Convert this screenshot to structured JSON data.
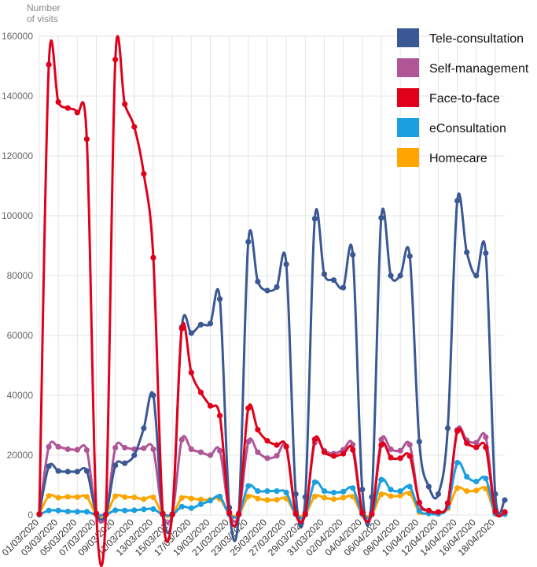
{
  "chart_data": {
    "type": "line",
    "ylabel": "Number of visits",
    "ylabel_lines": [
      "Number",
      "of visits"
    ],
    "ylim": [
      0,
      160000
    ],
    "y_ticks": [
      0,
      20000,
      40000,
      60000,
      80000,
      100000,
      120000,
      140000,
      160000
    ],
    "grid": true,
    "legend_position": "top-right",
    "x": [
      "01/03/2020",
      "02/03/2020",
      "03/03/2020",
      "04/03/2020",
      "05/03/2020",
      "06/03/2020",
      "07/03/2020",
      "08/03/2020",
      "09/03/2020",
      "10/03/2020",
      "11/03/2020",
      "12/03/2020",
      "13/03/2020",
      "14/03/2020",
      "15/03/2020",
      "16/03/2020",
      "17/03/2020",
      "18/03/2020",
      "19/03/2020",
      "20/03/2020",
      "21/03/2020",
      "22/03/2020",
      "23/03/2020",
      "24/03/2020",
      "25/03/2020",
      "26/03/2020",
      "27/03/2020",
      "28/03/2020",
      "29/03/2020",
      "30/03/2020",
      "31/03/2020",
      "01/04/2020",
      "02/04/2020",
      "03/04/2020",
      "04/04/2020",
      "05/04/2020",
      "06/04/2020",
      "07/04/2020",
      "08/04/2020",
      "09/04/2020",
      "10/04/2020",
      "11/04/2020",
      "12/04/2020",
      "13/04/2020",
      "14/04/2020",
      "15/04/2020",
      "16/04/2020",
      "17/04/2020",
      "18/04/2020",
      "19/04/2020"
    ],
    "x_tick_labels": [
      "01/03/2020",
      "03/03/2020",
      "05/03/2020",
      "07/03/2020",
      "09/03/2020",
      "11/03/2020",
      "13/03/2020",
      "15/03/2020",
      "17/03/2020",
      "19/03/2020",
      "21/03/2020",
      "23/03/2020",
      "25/03/2020",
      "27/03/2020",
      "29/03/2020",
      "31/03/2020",
      "02/04/2020",
      "04/04/2020",
      "06/04/2020",
      "08/04/2020",
      "10/04/2020",
      "12/04/2020",
      "14/04/2020",
      "16/04/2020",
      "18/04/2020"
    ],
    "series": [
      {
        "name": "Tele-consultation",
        "color": "#3a5894",
        "values": [
          400,
          16300,
          14700,
          14500,
          14500,
          14700,
          500,
          200,
          16600,
          17300,
          20000,
          29000,
          40000,
          500,
          300,
          62800,
          60800,
          63600,
          64000,
          72200,
          2500,
          500,
          91300,
          78000,
          75000,
          76200,
          83800,
          7000,
          6000,
          99000,
          80500,
          78500,
          76000,
          87000,
          8500,
          6000,
          99300,
          80000,
          80000,
          86500,
          24500,
          9500,
          7000,
          29000,
          105000,
          87800,
          80000,
          87500,
          7000,
          5000
        ]
      },
      {
        "name": "Self-management",
        "color": "#b05595",
        "values": [
          300,
          22800,
          22800,
          22000,
          21800,
          21700,
          300,
          100,
          22500,
          22500,
          22000,
          22300,
          22000,
          300,
          200,
          25200,
          22000,
          21000,
          20000,
          21500,
          1000,
          200,
          24500,
          21000,
          19000,
          19800,
          23000,
          1000,
          800,
          24200,
          21500,
          20500,
          21800,
          23500,
          1200,
          800,
          25200,
          22000,
          21500,
          23500,
          4000,
          1500,
          1000,
          4000,
          28500,
          25000,
          24200,
          26000,
          1500,
          1000
        ]
      },
      {
        "name": "Face-to-face",
        "color": "#e0001b",
        "values": [
          300,
          150500,
          138000,
          136000,
          134500,
          125600,
          500,
          200,
          152200,
          137300,
          129700,
          114000,
          86000,
          400,
          200,
          62300,
          47600,
          41000,
          36500,
          33200,
          700,
          300,
          35700,
          28500,
          24800,
          23400,
          22800,
          500,
          300,
          25300,
          21000,
          19700,
          20500,
          21800,
          700,
          300,
          23400,
          19200,
          19000,
          19700,
          4200,
          1500,
          1000,
          4000,
          28000,
          24000,
          22600,
          22600,
          1200,
          1000
        ]
      },
      {
        "name": "eConsultation",
        "color": "#1a9fe0",
        "values": [
          100,
          1500,
          1500,
          1200,
          1100,
          1100,
          100,
          100,
          1600,
          1500,
          1600,
          1900,
          2000,
          100,
          100,
          2800,
          2300,
          3600,
          4800,
          6200,
          200,
          100,
          9700,
          8000,
          8000,
          8000,
          7500,
          200,
          100,
          11000,
          8000,
          7500,
          7800,
          9000,
          300,
          200,
          11800,
          8500,
          8000,
          9500,
          1500,
          500,
          400,
          2800,
          17500,
          12800,
          11200,
          12200,
          500,
          300
        ]
      },
      {
        "name": "Homecare",
        "color": "#ffa500",
        "values": [
          200,
          6400,
          5800,
          6100,
          6000,
          6100,
          200,
          100,
          6300,
          6000,
          5900,
          5300,
          5900,
          200,
          100,
          5700,
          5500,
          5200,
          5100,
          5400,
          400,
          200,
          6200,
          5500,
          5000,
          5100,
          5500,
          300,
          200,
          6200,
          5800,
          5300,
          5800,
          6100,
          300,
          200,
          6900,
          6300,
          6500,
          7200,
          1000,
          600,
          500,
          2200,
          9000,
          8000,
          8200,
          8800,
          400,
          300
        ]
      }
    ]
  }
}
